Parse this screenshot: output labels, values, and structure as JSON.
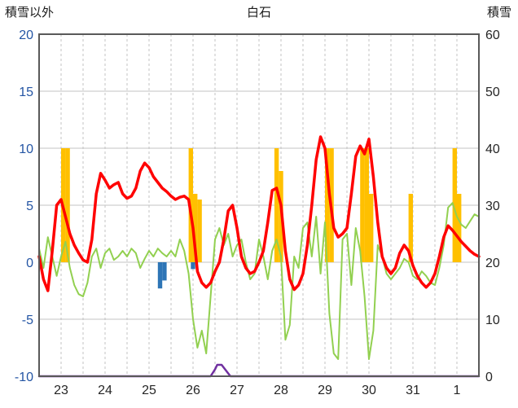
{
  "chart_data": {
    "type": "line",
    "title": "白石",
    "left_axis_title": "積雪以外",
    "right_axis_title": "積雪",
    "left_ylim": [
      -10,
      20
    ],
    "right_ylim": [
      0,
      60
    ],
    "left_ticks": [
      20,
      15,
      10,
      5,
      0,
      -5,
      -10
    ],
    "right_ticks": [
      60,
      50,
      40,
      30,
      20,
      10,
      0
    ],
    "x_labels": [
      "23",
      "24",
      "25",
      "26",
      "27",
      "28",
      "29",
      "30",
      "31",
      "1"
    ],
    "x_range_days": 10,
    "grid": "on",
    "legend": "none",
    "colors": {
      "grid": "#C3C3C3",
      "border": "#595959",
      "left_tick_text": "#2455A4",
      "right_tick_text": "#262626",
      "x_tick_text": "#262626",
      "precip_bar": "#FFC000",
      "negative_bar": "#2E75B6",
      "green_line": "#92D050",
      "red_line": "#FF0000",
      "snow_line": "#7030A0"
    },
    "series": [
      {
        "name": "precipitation-bars",
        "type": "bar",
        "axis": "left",
        "color": "#FFC000",
        "bar_width_days": 0.1,
        "bars": [
          {
            "x": 0.5,
            "h": 10
          },
          {
            "x": 0.6,
            "h": 10
          },
          {
            "x": 3.4,
            "h": 10
          },
          {
            "x": 3.5,
            "h": 6
          },
          {
            "x": 3.6,
            "h": 5.5
          },
          {
            "x": 5.35,
            "h": 10
          },
          {
            "x": 5.45,
            "h": 8
          },
          {
            "x": 6.5,
            "h": 10
          },
          {
            "x": 6.6,
            "h": 10
          },
          {
            "x": 7.3,
            "h": 10
          },
          {
            "x": 7.4,
            "h": 10
          },
          {
            "x": 7.5,
            "h": 6
          },
          {
            "x": 8.4,
            "h": 6
          },
          {
            "x": 9.4,
            "h": 10
          },
          {
            "x": 9.5,
            "h": 6
          }
        ]
      },
      {
        "name": "negative-bars",
        "type": "bar",
        "axis": "left",
        "color": "#2E75B6",
        "bar_width_days": 0.1,
        "bars": [
          {
            "x": 2.7,
            "h": -2.3
          },
          {
            "x": 2.8,
            "h": -1.6
          },
          {
            "x": 3.45,
            "h": -0.6
          }
        ]
      },
      {
        "name": "green-line",
        "type": "line",
        "axis": "left",
        "color": "#92D050",
        "width": 2,
        "step_days": 0.1,
        "values": [
          1.2,
          -0.5,
          2.2,
          0.5,
          -1.2,
          0.5,
          1.8,
          -0.5,
          -2.0,
          -2.8,
          -3.0,
          -1.8,
          0.5,
          1.2,
          -0.5,
          0.8,
          1.2,
          0.2,
          0.5,
          1.0,
          0.5,
          1.2,
          0.8,
          -0.5,
          0.3,
          1.0,
          0.5,
          1.2,
          0.8,
          0.5,
          1.0,
          0.5,
          2.0,
          1.0,
          -1.0,
          -5.0,
          -7.5,
          -6.0,
          -8.0,
          -3.0,
          2.0,
          3.0,
          1.5,
          2.5,
          0.5,
          1.5,
          2.0,
          0.0,
          -1.5,
          -1.0,
          2.0,
          0.5,
          -1.5,
          1.0,
          2.0,
          0.5,
          -6.8,
          -5.5,
          0.5,
          -0.5,
          3.0,
          3.5,
          0.5,
          4.0,
          -1.0,
          3.5,
          -4.5,
          -8.0,
          -8.5,
          2.0,
          2.5,
          -2.0,
          3.0,
          1.0,
          -3.0,
          -8.5,
          -6.0,
          1.5,
          0.5,
          -1.0,
          -1.5,
          -1.0,
          -0.5,
          0.3,
          0.0,
          -1.2,
          -1.5,
          -0.8,
          -1.2,
          -1.8,
          -2.0,
          -0.5,
          1.5,
          4.8,
          5.2,
          4.0,
          3.3,
          3.0,
          3.6,
          4.2,
          4.0
        ]
      },
      {
        "name": "red-temperature-line",
        "type": "line",
        "axis": "left",
        "color": "#FF0000",
        "width": 3.5,
        "step_days": 0.1,
        "values": [
          0.5,
          -1.5,
          -2.5,
          1.0,
          5.0,
          5.5,
          4.0,
          2.5,
          1.5,
          0.8,
          0.2,
          0.0,
          2.0,
          6.0,
          7.8,
          7.2,
          6.5,
          6.8,
          7.0,
          6.0,
          5.6,
          5.8,
          6.5,
          8.0,
          8.7,
          8.3,
          7.5,
          7.0,
          6.5,
          6.2,
          5.8,
          5.5,
          5.7,
          5.8,
          5.5,
          3.0,
          -0.8,
          -1.8,
          -2.2,
          -1.8,
          -0.8,
          0.0,
          2.0,
          4.5,
          5.0,
          3.0,
          0.5,
          -0.5,
          -1.0,
          -0.8,
          0.0,
          1.0,
          3.5,
          6.3,
          6.5,
          5.0,
          1.0,
          -1.5,
          -2.4,
          -2.0,
          -1.0,
          1.5,
          5.0,
          9.0,
          11.0,
          10.0,
          6.0,
          3.0,
          2.2,
          2.5,
          3.0,
          6.0,
          9.3,
          10.2,
          9.5,
          10.8,
          7.5,
          3.5,
          0.5,
          -0.5,
          -1.0,
          -0.5,
          0.8,
          1.5,
          1.0,
          -0.3,
          -1.2,
          -1.8,
          -2.2,
          -1.8,
          -1.0,
          0.5,
          2.2,
          3.2,
          2.8,
          2.3,
          1.8,
          1.4,
          1.0,
          0.7,
          0.5
        ]
      },
      {
        "name": "snow-depth-line",
        "type": "line",
        "axis": "right",
        "color": "#7030A0",
        "width": 2.5,
        "points": [
          {
            "x": 0.0,
            "v": 0
          },
          {
            "x": 3.9,
            "v": 0
          },
          {
            "x": 4.0,
            "v": 1.2
          },
          {
            "x": 4.05,
            "v": 2.0
          },
          {
            "x": 4.15,
            "v": 2.0
          },
          {
            "x": 4.25,
            "v": 1.0
          },
          {
            "x": 4.35,
            "v": 0
          },
          {
            "x": 10.0,
            "v": 0
          }
        ]
      }
    ]
  }
}
